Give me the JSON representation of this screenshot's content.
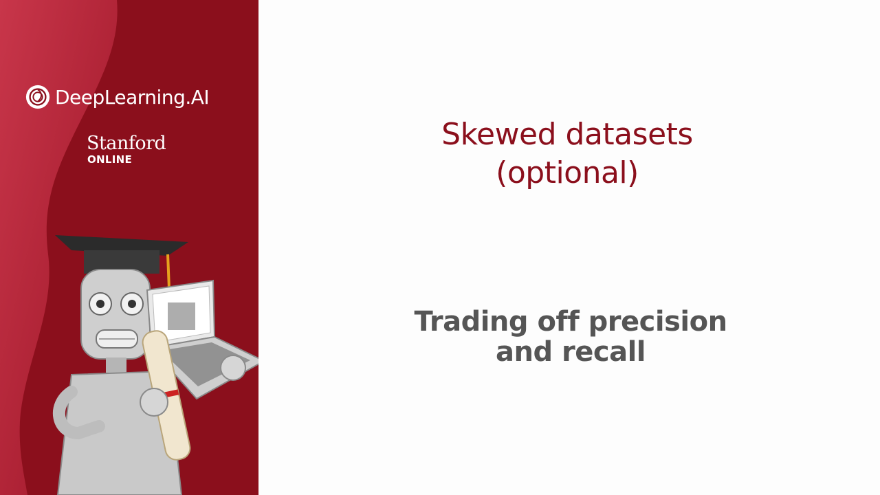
{
  "branding": {
    "logo_text": "DeepLearning.AI",
    "partner_name": "Stanford",
    "partner_sub": "ONLINE"
  },
  "slide": {
    "title_line1": "Skewed datasets",
    "title_line2": "(optional)",
    "subtitle_line1": "Trading off precision",
    "subtitle_line2": "and recall"
  },
  "colors": {
    "brand_red": "#8b0f1c",
    "subtitle_gray": "#555555",
    "background": "#fdfdfd"
  },
  "illustration": {
    "icon": "graduate-robot-with-laptop-icon"
  }
}
